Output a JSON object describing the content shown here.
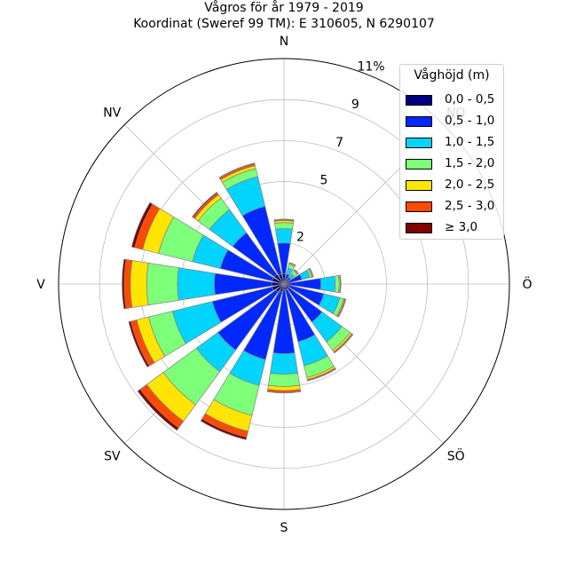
{
  "title": {
    "line1": "Vågros för år 1979 - 2019",
    "line2": "Koordinat (Sweref 99 TM): E 310605, N 6290107"
  },
  "chart_data": {
    "type": "stacked-polar-bar",
    "radial_unit": "%",
    "rlim": [
      0,
      11
    ],
    "radial_ticks": [
      "2",
      "5",
      "7",
      "9",
      "11%"
    ],
    "radial_tick_values": [
      2,
      5,
      7,
      9,
      11
    ],
    "grid": true,
    "legend_placement": "top-right",
    "directions": {
      "angles_deg": [
        0,
        22.5,
        45,
        67.5,
        90,
        112.5,
        135,
        157.5,
        180,
        202.5,
        225,
        247.5,
        270,
        292.5,
        315,
        337.5
      ],
      "tick_labels": [
        {
          "text": "N",
          "angle": 0
        },
        {
          "text": "NO",
          "angle": 45
        },
        {
          "text": "Ö",
          "angle": 90
        },
        {
          "text": "SÖ",
          "angle": 135
        },
        {
          "text": "S",
          "angle": 180
        },
        {
          "text": "SV",
          "angle": 225
        },
        {
          "text": "V",
          "angle": 270
        },
        {
          "text": "NV",
          "angle": 315
        }
      ]
    },
    "legend": {
      "title": "Våghöjd (m)",
      "items": [
        {
          "label": "0,0 - 0,5",
          "color": "#000080"
        },
        {
          "label": "0,5 - 1,0",
          "color": "#0028ff"
        },
        {
          "label": "1,0 - 1,5",
          "color": "#00d4ff"
        },
        {
          "label": "1,5 - 2,0",
          "color": "#7dff7a"
        },
        {
          "label": "2,0 - 2,5",
          "color": "#ffe500"
        },
        {
          "label": "2,5 - 3,0",
          "color": "#ff4a00"
        },
        {
          "label": "≥ 3,0",
          "color": "#800000"
        }
      ]
    },
    "series": [
      {
        "name": "0,0 - 0,5",
        "values": [
          0.5,
          0.2,
          0.1,
          0.1,
          0.2,
          0.2,
          0.3,
          0.3,
          0.3,
          0.4,
          0.5,
          0.6,
          0.6,
          0.6,
          0.6,
          0.5
        ]
      },
      {
        "name": "0,5 - 1,0",
        "values": [
          1.5,
          0.3,
          0.3,
          0.8,
          1.6,
          1.8,
          2.0,
          2.6,
          3.1,
          3.4,
          3.5,
          3.0,
          2.8,
          2.6,
          2.5,
          3.4
        ]
      },
      {
        "name": "1,0 - 1,5",
        "values": [
          0.7,
          0.3,
          0.2,
          0.4,
          0.7,
          0.8,
          1.2,
          1.2,
          1.0,
          1.3,
          1.3,
          2.0,
          1.8,
          1.4,
          1.4,
          1.5
        ]
      },
      {
        "name": "1,5 - 2,0",
        "values": [
          0.3,
          0.2,
          0.2,
          0.1,
          0.2,
          0.2,
          0.5,
          0.6,
          0.6,
          1.5,
          2.0,
          1.2,
          1.5,
          1.7,
          0.7,
          0.4
        ]
      },
      {
        "name": "2,0 - 2,5",
        "values": [
          0.1,
          0.05,
          0.05,
          0.05,
          0.05,
          0.05,
          0.1,
          0.1,
          0.2,
          0.8,
          1.0,
          0.6,
          0.8,
          0.8,
          0.2,
          0.15
        ]
      },
      {
        "name": "2,5 - 3,0",
        "values": [
          0.05,
          0.02,
          0.02,
          0.02,
          0.02,
          0.05,
          0.05,
          0.05,
          0.1,
          0.3,
          0.4,
          0.3,
          0.3,
          0.4,
          0.1,
          0.1
        ]
      },
      {
        "name": "≥ 3,0",
        "values": [
          0.02,
          0.01,
          0.01,
          0.01,
          0.01,
          0.01,
          0.02,
          0.02,
          0.02,
          0.12,
          0.15,
          0.1,
          0.1,
          0.15,
          0.05,
          0.03
        ]
      }
    ]
  }
}
